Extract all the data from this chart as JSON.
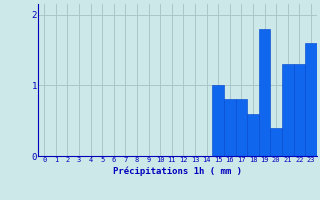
{
  "title": "",
  "xlabel": "Précipitations 1h ( mm )",
  "ylabel": "",
  "categories": [
    0,
    1,
    2,
    3,
    4,
    5,
    6,
    7,
    8,
    9,
    10,
    11,
    12,
    13,
    14,
    15,
    16,
    17,
    18,
    19,
    20,
    21,
    22,
    23
  ],
  "values": [
    0,
    0,
    0,
    0,
    0,
    0,
    0,
    0,
    0,
    0,
    0,
    0,
    0,
    0,
    0,
    1.0,
    0.8,
    0.8,
    0.6,
    1.8,
    0.4,
    1.3,
    1.3,
    1.6
  ],
  "bar_color": "#1166ee",
  "bar_edge_color": "#0044cc",
  "background_color": "#cce8e8",
  "grid_color": "#aac8c8",
  "tick_color": "#0000bb",
  "label_color": "#0000bb",
  "ylim": [
    0,
    2.15
  ],
  "yticks": [
    0,
    1,
    2
  ],
  "figsize": [
    3.2,
    2.0
  ],
  "dpi": 100
}
